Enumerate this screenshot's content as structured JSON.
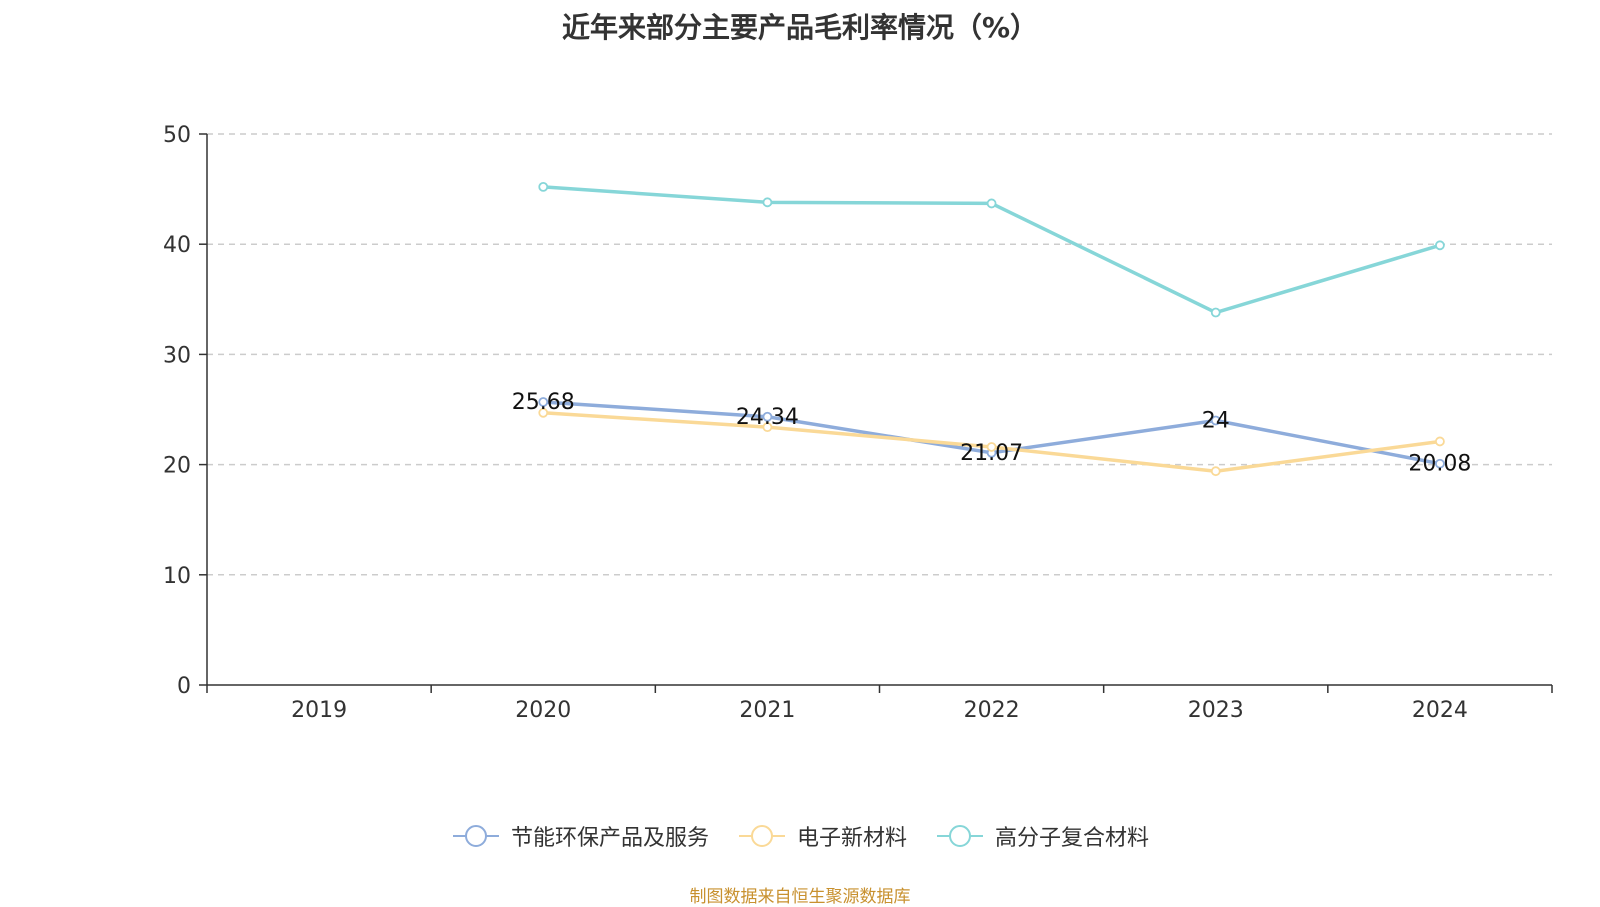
{
  "chart_data": {
    "type": "line",
    "title": "近年来部分主要产品毛利率情况（%）",
    "categories": [
      "2019",
      "2020",
      "2021",
      "2022",
      "2023",
      "2024"
    ],
    "ylim": [
      0,
      50
    ],
    "yticks": [
      0,
      10,
      20,
      30,
      40,
      50
    ],
    "grid": true,
    "legend_position": "bottom",
    "series": [
      {
        "name": "节能环保产品及服务",
        "color": "#8eacdb",
        "values": [
          null,
          25.68,
          24.34,
          21.07,
          24,
          20.08
        ],
        "labels": [
          "",
          "25.68",
          "24.34",
          "21.07",
          "24",
          "20.08"
        ]
      },
      {
        "name": "电子新材料",
        "color": "#fad997",
        "values": [
          null,
          24.7,
          23.4,
          21.6,
          19.4,
          22.1
        ],
        "labels": [
          "",
          "",
          "",
          "",
          "",
          ""
        ]
      },
      {
        "name": "高分子复合材料",
        "color": "#86d6d8",
        "values": [
          null,
          45.2,
          43.8,
          43.7,
          33.8,
          39.9
        ],
        "labels": [
          "",
          "",
          "",
          "",
          "",
          ""
        ]
      }
    ]
  },
  "source": "制图数据来自恒生聚源数据库"
}
